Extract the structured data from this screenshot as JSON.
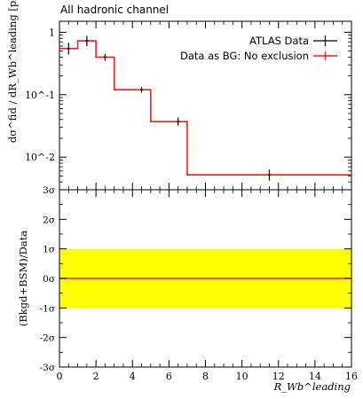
{
  "chart_data": [
    {
      "panel": "main",
      "type": "line",
      "title": "All hadronic channel",
      "xlabel": "R_Wb^leading",
      "ylabel": "dσ^fid / dR_Wb^leading [pb]",
      "yscale": "log",
      "ylim": [
        0.003,
        1.5
      ],
      "yticks": [
        {
          "value": 1,
          "label": "1"
        },
        {
          "value": 0.1,
          "label": "10^-1"
        },
        {
          "value": 0.01,
          "label": "10^-2"
        }
      ],
      "xlim": [
        0,
        16
      ],
      "legend_position": "top-right",
      "series": [
        {
          "name": "ATLAS Data",
          "style": "points",
          "color": "#000000",
          "x": [
            0.5,
            1.5,
            2.5,
            4.5,
            6.5,
            11.5
          ],
          "y": [
            0.55,
            0.73,
            0.4,
            0.12,
            0.037,
            0.0052
          ],
          "yerr_lo": [
            0.44,
            0.6,
            0.35,
            0.108,
            0.032,
            0.0042
          ],
          "yerr_hi": [
            0.68,
            0.88,
            0.45,
            0.133,
            0.043,
            0.0063
          ]
        },
        {
          "name": "Data as BG: No exclusion",
          "style": "histogram",
          "color": "#e8231a",
          "bin_edges": [
            0,
            1,
            2,
            3,
            5,
            7,
            16
          ],
          "values": [
            0.55,
            0.73,
            0.4,
            0.12,
            0.037,
            0.0052
          ]
        }
      ],
      "legend": [
        {
          "label": "ATLAS Data",
          "style": "points",
          "color": "#000000"
        },
        {
          "label": "Data as BG: No exclusion",
          "style": "histogram",
          "color": "#e8231a"
        }
      ]
    },
    {
      "panel": "ratio",
      "type": "line",
      "ylabel": "(Bkgd+BSM)/Data",
      "xlabel": "R_Wb^leading",
      "ylim": [
        -3,
        3
      ],
      "yticks": [
        {
          "value": 3,
          "label": "3σ"
        },
        {
          "value": 2,
          "label": "2σ"
        },
        {
          "value": 1,
          "label": "1σ"
        },
        {
          "value": 0,
          "label": "0σ"
        },
        {
          "value": -1,
          "label": "-1σ"
        },
        {
          "value": -2,
          "label": "-2σ"
        },
        {
          "value": -3,
          "label": "-3σ"
        }
      ],
      "xlim": [
        0,
        16
      ],
      "xticks": [
        0,
        2,
        4,
        6,
        8,
        10,
        12,
        14,
        16
      ],
      "band": {
        "from": -1,
        "to": 1,
        "color": "#ffff00"
      },
      "series": [
        {
          "name": "Data as BG: No exclusion",
          "color": "#e8231a",
          "x": [
            0,
            16
          ],
          "y": [
            0,
            0
          ]
        }
      ]
    }
  ]
}
